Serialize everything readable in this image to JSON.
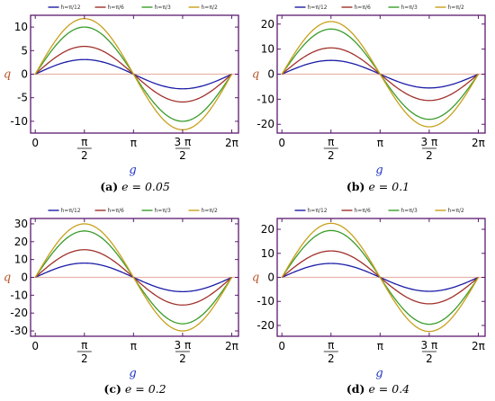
{
  "colors": {
    "frame": "#5a1a6e",
    "axis_label": "#1f35c8",
    "ylabel": "#b8562b",
    "zero_line": "#e8b4aa"
  },
  "chart_data": [
    {
      "type": "line",
      "caption_label": "(a)",
      "caption_param": "e = 0.05",
      "xlabel": "g",
      "ylabel": "q",
      "xlim": [
        -0.15,
        6.5
      ],
      "ylim": [
        -12.5,
        12.5
      ],
      "yticks": [
        -10,
        -5,
        0,
        5,
        10
      ],
      "xtick_labels": [
        "0",
        "π/2",
        "π",
        "3π/2",
        "2π"
      ],
      "legend_position": "top",
      "series": [
        {
          "name": "h=π/12",
          "color": "#1c1ca8",
          "amplitude": 3.1
        },
        {
          "name": "h=π/6",
          "color": "#a0302a",
          "amplitude": 5.9
        },
        {
          "name": "h=π/3",
          "color": "#3a9c2a",
          "amplitude": 10.0
        },
        {
          "name": "h=π/2",
          "color": "#c8a01c",
          "amplitude": 11.8
        }
      ]
    },
    {
      "type": "line",
      "caption_label": "(b)",
      "caption_param": "e = 0.1",
      "xlabel": "g",
      "ylabel": "q",
      "xlim": [
        -0.15,
        6.5
      ],
      "ylim": [
        -23.5,
        23.5
      ],
      "yticks": [
        -20,
        -10,
        0,
        10,
        20
      ],
      "xtick_labels": [
        "0",
        "π/2",
        "π",
        "3π/2",
        "2π"
      ],
      "legend_position": "top",
      "series": [
        {
          "name": "h=π/12",
          "color": "#1c1ca8",
          "amplitude": 5.5
        },
        {
          "name": "h=π/6",
          "color": "#a0302a",
          "amplitude": 10.5
        },
        {
          "name": "h=π/3",
          "color": "#3a9c2a",
          "amplitude": 18.0
        },
        {
          "name": "h=π/2",
          "color": "#c8a01c",
          "amplitude": 21.0
        }
      ]
    },
    {
      "type": "line",
      "caption_label": "(c)",
      "caption_param": "e = 0.2",
      "xlabel": "g",
      "ylabel": "q",
      "xlim": [
        -0.15,
        6.5
      ],
      "ylim": [
        -33,
        33
      ],
      "yticks": [
        -30,
        -20,
        -10,
        0,
        10,
        20,
        30
      ],
      "xtick_labels": [
        "0",
        "π/2",
        "π",
        "3π/2",
        "2π"
      ],
      "legend_position": "top",
      "series": [
        {
          "name": "h=π/12",
          "color": "#1c1ca8",
          "amplitude": 8.0
        },
        {
          "name": "h=π/6",
          "color": "#a0302a",
          "amplitude": 15.5
        },
        {
          "name": "h=π/3",
          "color": "#3a9c2a",
          "amplitude": 26.0
        },
        {
          "name": "h=π/2",
          "color": "#c8a01c",
          "amplitude": 30.0
        }
      ]
    },
    {
      "type": "line",
      "caption_label": "(d)",
      "caption_param": "e = 0.4",
      "xlabel": "g",
      "ylabel": "q",
      "xlim": [
        -0.15,
        6.5
      ],
      "ylim": [
        -24.5,
        24.5
      ],
      "yticks": [
        -20,
        -10,
        0,
        10,
        20
      ],
      "xtick_labels": [
        "0",
        "π/2",
        "π",
        "3π/2",
        "2π"
      ],
      "legend_position": "top",
      "series": [
        {
          "name": "h=π/12",
          "color": "#1c1ca8",
          "amplitude": 5.8
        },
        {
          "name": "h=π/6",
          "color": "#a0302a",
          "amplitude": 11.0
        },
        {
          "name": "h=π/3",
          "color": "#3a9c2a",
          "amplitude": 19.5
        },
        {
          "name": "h=π/2",
          "color": "#c8a01c",
          "amplitude": 22.5
        }
      ]
    }
  ]
}
